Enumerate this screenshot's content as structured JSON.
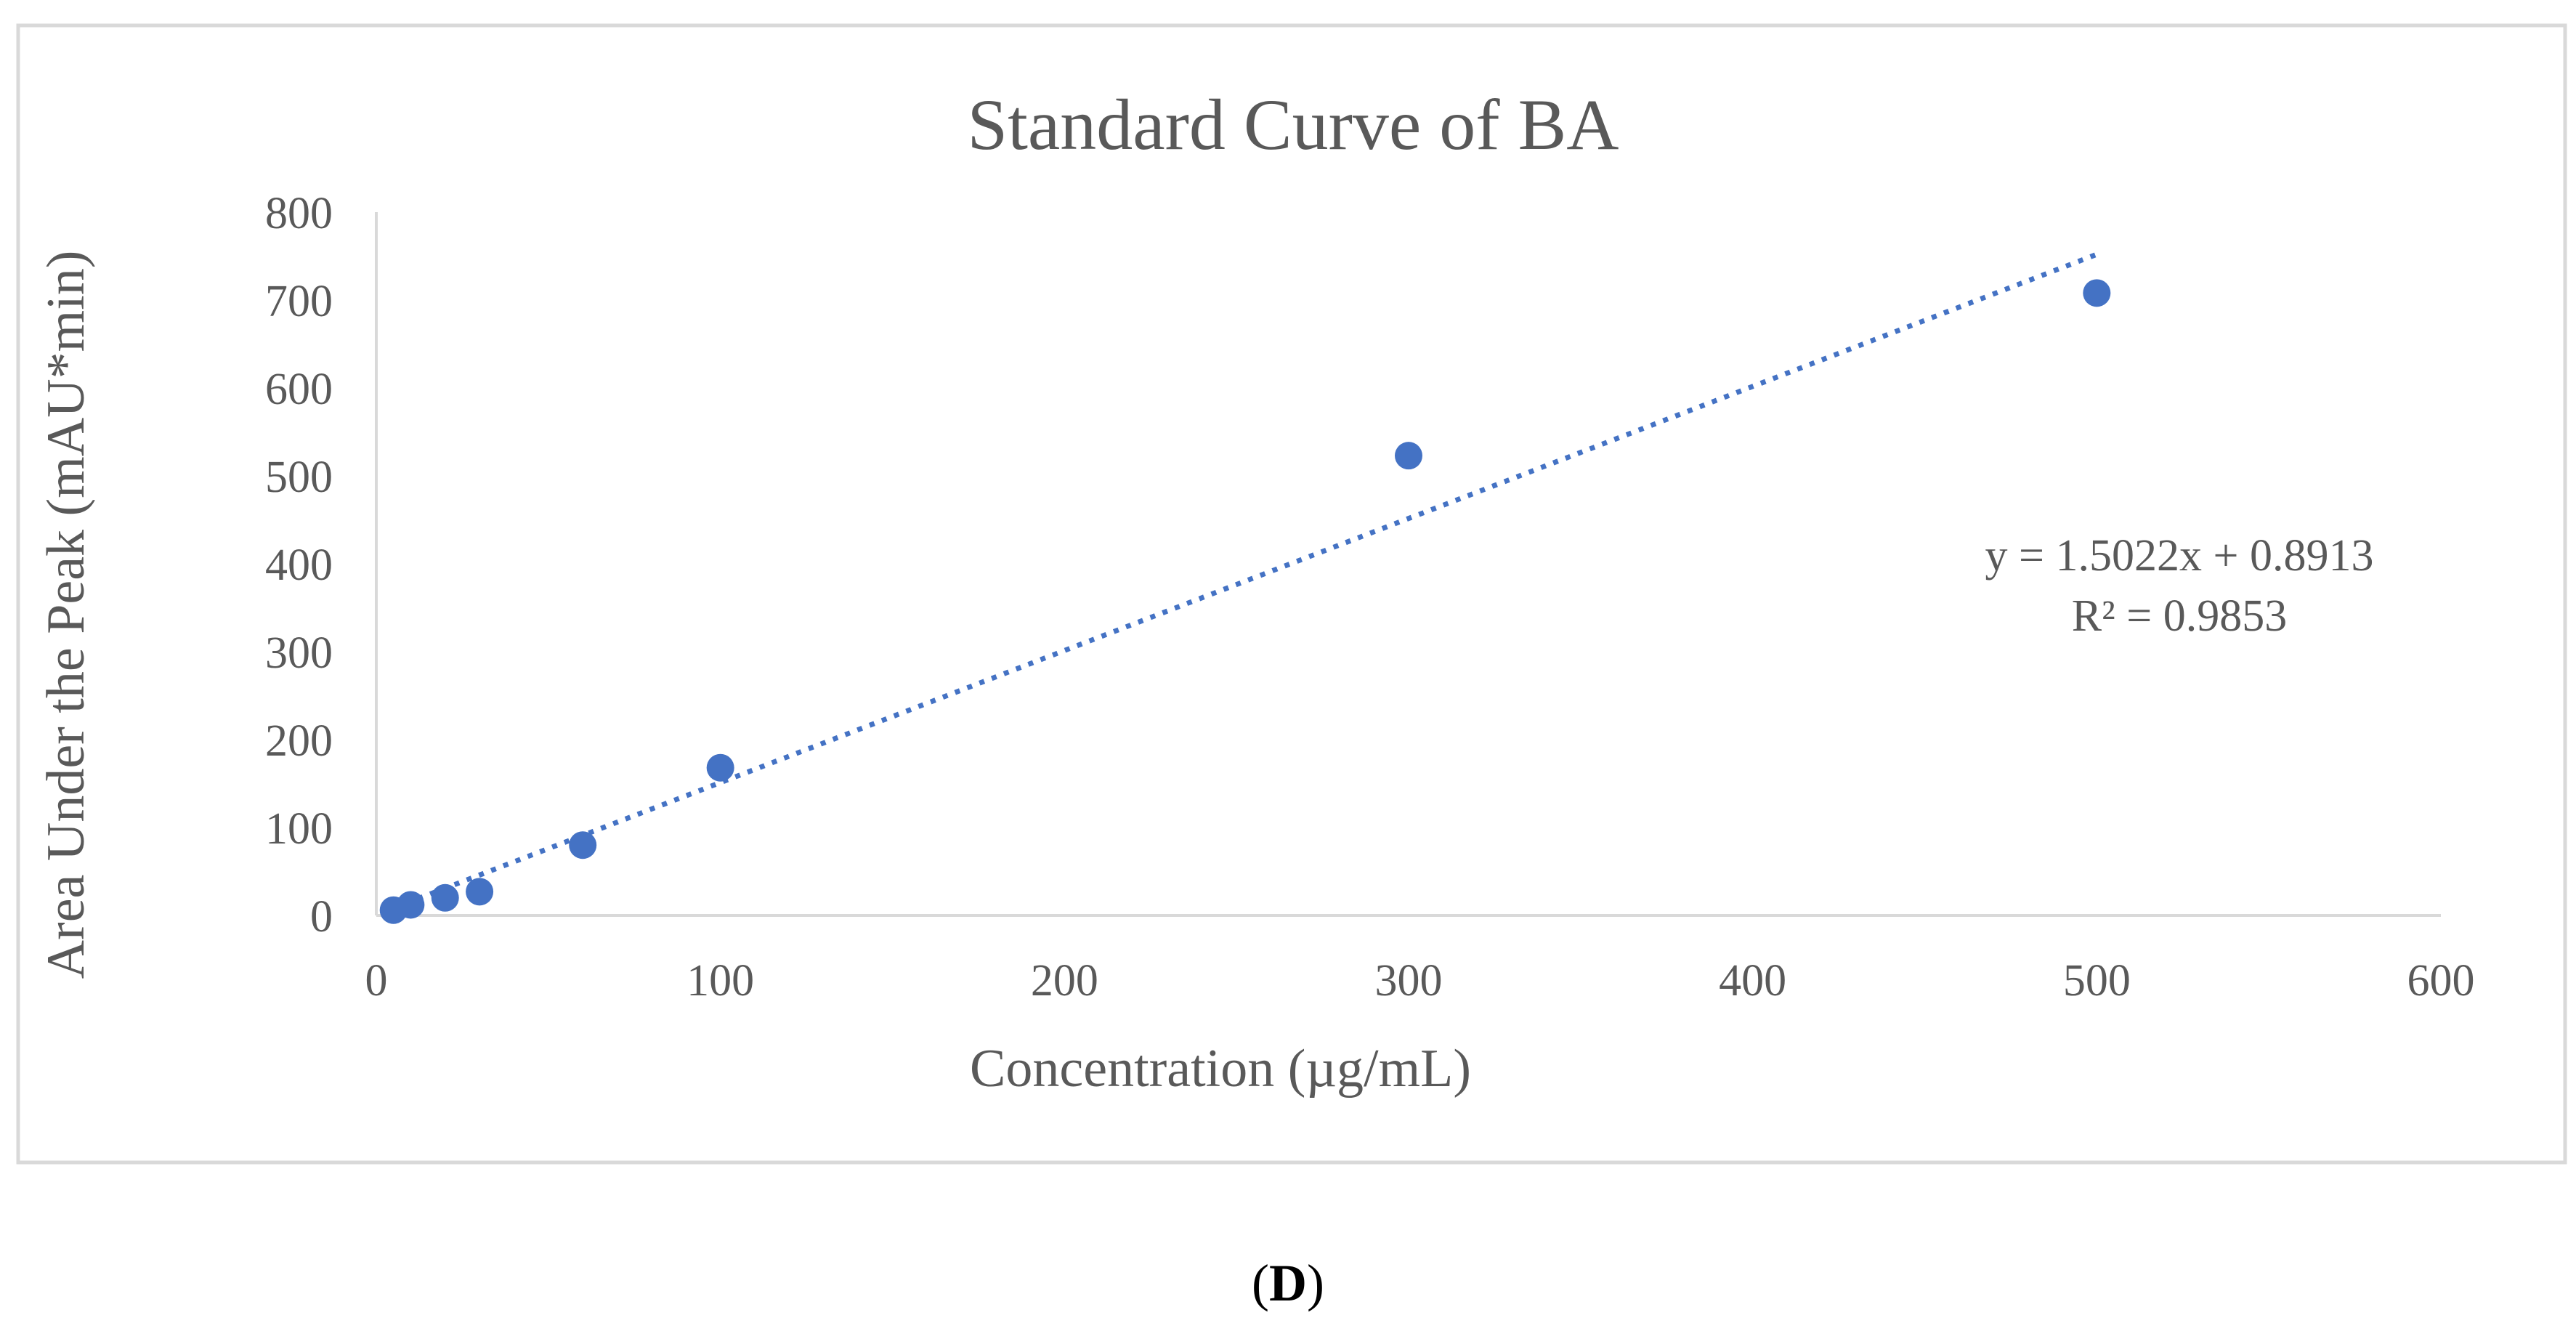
{
  "chart_data": {
    "type": "scatter",
    "title": "Standard Curve of BA",
    "xlabel": "Concentration (µg/mL)",
    "ylabel": "Area Under the Peak (mAU*min)",
    "xlim": [
      0,
      600
    ],
    "ylim": [
      0,
      800
    ],
    "xticks": [
      "0",
      "100",
      "200",
      "300",
      "400",
      "500",
      "600"
    ],
    "yticks": [
      "0",
      "100",
      "200",
      "300",
      "400",
      "500",
      "600",
      "700",
      "800"
    ],
    "grid": false,
    "legend": "none",
    "series": [
      {
        "name": "BA",
        "x": [
          5,
          10,
          20,
          30,
          60,
          100,
          300,
          500
        ],
        "y": [
          6,
          12,
          20,
          27,
          80,
          168,
          523,
          708
        ]
      }
    ],
    "trendline": {
      "type": "linear",
      "slope": 1.5022,
      "intercept": 0.8913,
      "x_range": [
        5,
        500
      ],
      "style": "dotted"
    },
    "annotations": {
      "equation": "y = 1.5022x + 0.8913",
      "r_squared": "R² = 0.9853"
    },
    "colors": {
      "marker": "#4472c4",
      "trendline": "#4472c4",
      "axis": "#d9d9d9",
      "text": "#595959"
    }
  },
  "panel_label": {
    "open": "(",
    "letter": "D",
    "close": ")"
  }
}
